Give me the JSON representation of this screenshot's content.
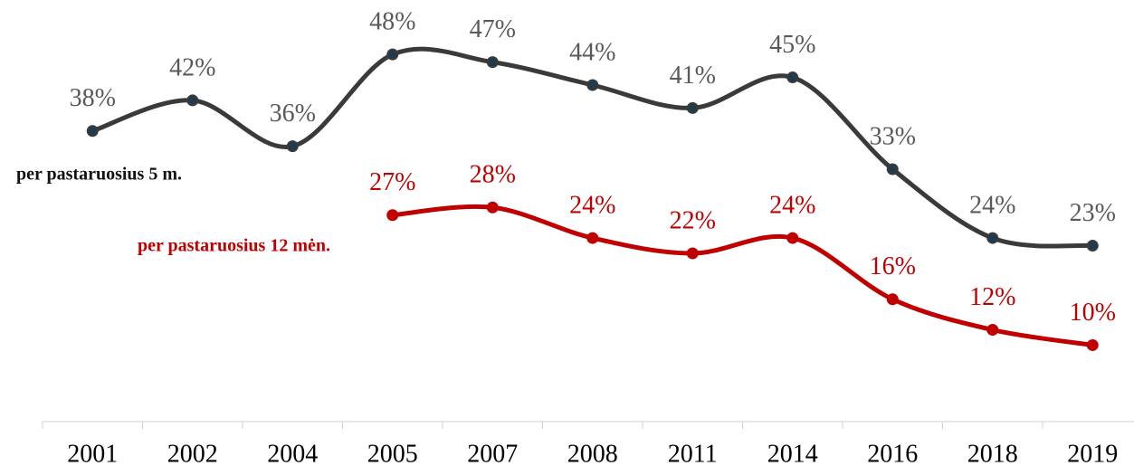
{
  "chart_data": {
    "type": "line",
    "categories": [
      "2001",
      "2002",
      "2004",
      "2005",
      "2007",
      "2008",
      "2011",
      "2014",
      "2016",
      "2018",
      "2019"
    ],
    "series": [
      {
        "name": "per pastaruosius 5 m.",
        "color": "#3a3a3a",
        "label_color": "#595959",
        "values": [
          38,
          42,
          36,
          48,
          47,
          44,
          41,
          45,
          33,
          24,
          23
        ],
        "value_labels": [
          "38%",
          "42%",
          "36%",
          "48%",
          "47%",
          "44%",
          "41%",
          "45%",
          "33%",
          "24%",
          "23%"
        ]
      },
      {
        "name": "per pastaruosius 12 mėn.",
        "color": "#c00000",
        "label_color": "#c00000",
        "values": [
          null,
          null,
          null,
          27,
          28,
          24,
          22,
          24,
          16,
          12,
          10
        ],
        "value_labels": [
          null,
          null,
          null,
          "27%",
          "28%",
          "24%",
          "22%",
          "24%",
          "16%",
          "12%",
          "10%"
        ]
      }
    ],
    "ylim": [
      0,
      55
    ]
  }
}
